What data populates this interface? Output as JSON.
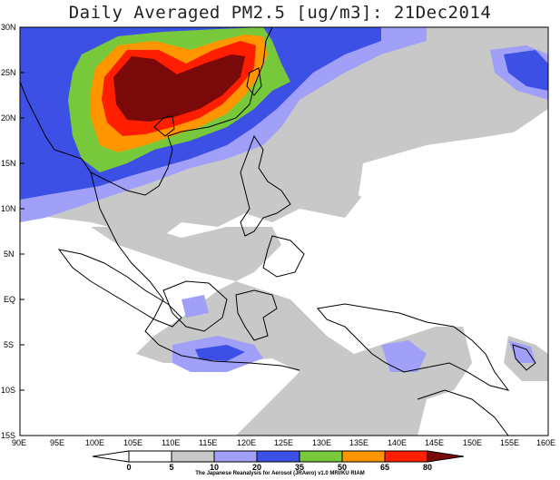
{
  "title": "Daily Averaged PM2.5 [ug/m3]: 21Dec2014",
  "credit": "The Japanese Reanalysis for Aerosol (JRAero) v1.0 MRI/KU RIAM",
  "lat_labels": [
    "30N",
    "25N",
    "20N",
    "15N",
    "10N",
    "5N",
    "EQ",
    "5S",
    "10S",
    "15S"
  ],
  "lon_labels": [
    "90E",
    "95E",
    "100E",
    "105E",
    "110E",
    "115E",
    "120E",
    "125E",
    "130E",
    "135E",
    "140E",
    "145E",
    "150E",
    "155E",
    "160E"
  ],
  "legend": {
    "ticks": [
      "0",
      "5",
      "10",
      "20",
      "35",
      "50",
      "65",
      "80"
    ],
    "colors": [
      "#ffffff",
      "#ffffff",
      "#c8c8c8",
      "#a0a0f8",
      "#3c50e6",
      "#78c83c",
      "#ff9600",
      "#ff1e00",
      "#7a0a0a"
    ]
  }
}
